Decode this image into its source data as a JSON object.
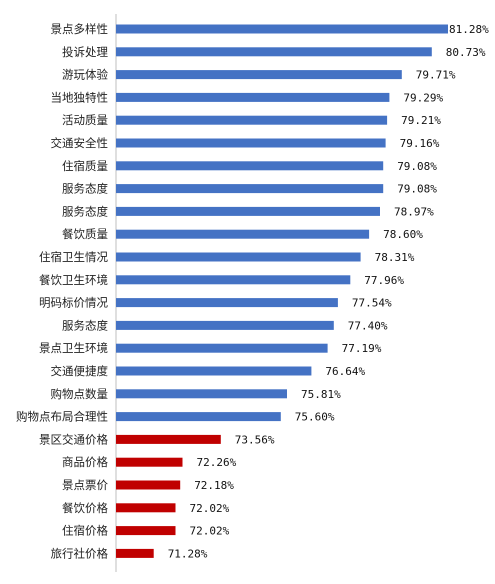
{
  "chart_data": {
    "type": "bar",
    "orientation": "horizontal",
    "title": "",
    "xlabel": "",
    "ylabel": "",
    "xlim": [
      70,
      82
    ],
    "grid": false,
    "legend": "none",
    "colors": {
      "blue": "#4472C4",
      "red": "#C00000"
    },
    "categories": [
      "景点多样性",
      "投诉处理",
      "游玩体验",
      "当地独特性",
      "活动质量",
      "交通安全性",
      "住宿质量",
      "服务态度",
      "服务态度",
      "餐饮质量",
      "住宿卫生情况",
      "餐饮卫生环境",
      "明码标价情况",
      "服务态度",
      "景点卫生环境",
      "交通便捷度",
      "购物点数量",
      "购物点布局合理性",
      "景区交通价格",
      "商品价格",
      "景点票价",
      "餐饮价格",
      "住宿价格",
      "旅行社价格"
    ],
    "values": [
      81.28,
      80.73,
      79.71,
      79.29,
      79.21,
      79.16,
      79.08,
      79.08,
      78.97,
      78.6,
      78.31,
      77.96,
      77.54,
      77.4,
      77.19,
      76.64,
      75.81,
      75.6,
      73.56,
      72.26,
      72.18,
      72.02,
      72.02,
      71.28
    ],
    "value_labels": [
      "81.28%",
      "80.73%",
      "79.71%",
      "79.29%",
      "79.21%",
      "79.16%",
      "79.08%",
      "79.08%",
      "78.97%",
      "78.60%",
      "78.31%",
      "77.96%",
      "77.54%",
      "77.40%",
      "77.19%",
      "76.64%",
      "75.81%",
      "75.60%",
      "73.56%",
      "72.26%",
      "72.18%",
      "72.02%",
      "72.02%",
      "71.28%"
    ],
    "bar_colors": [
      "blue",
      "blue",
      "blue",
      "blue",
      "blue",
      "blue",
      "blue",
      "blue",
      "blue",
      "blue",
      "blue",
      "blue",
      "blue",
      "blue",
      "blue",
      "blue",
      "blue",
      "blue",
      "red",
      "red",
      "red",
      "red",
      "red",
      "red"
    ]
  }
}
